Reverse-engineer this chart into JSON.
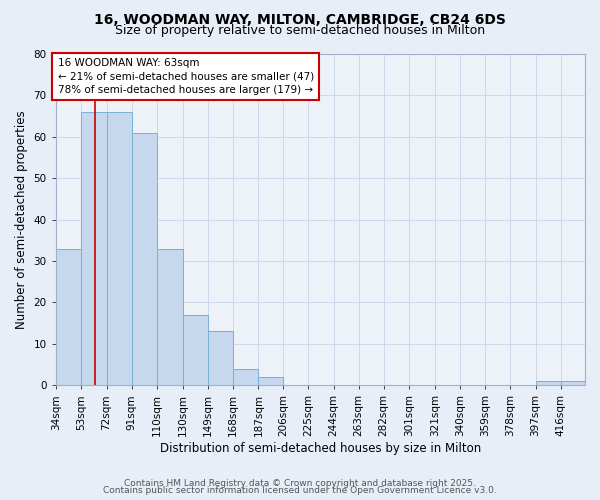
{
  "title1": "16, WOODMAN WAY, MILTON, CAMBRIDGE, CB24 6DS",
  "title2": "Size of property relative to semi-detached houses in Milton",
  "xlabel": "Distribution of semi-detached houses by size in Milton",
  "ylabel": "Number of semi-detached properties",
  "bin_edges": [
    34,
    53,
    72,
    91,
    110,
    130,
    149,
    168,
    187,
    206,
    225,
    244,
    263,
    282,
    301,
    321,
    340,
    359,
    378,
    397,
    416
  ],
  "bar_heights": [
    33,
    66,
    66,
    61,
    33,
    17,
    13,
    4,
    2,
    0,
    0,
    0,
    0,
    0,
    0,
    0,
    0,
    0,
    0,
    1,
    1
  ],
  "bar_color": "#c5d8ee",
  "bar_edge_color": "#7aafd4",
  "property_size": 63,
  "vline_color": "#cc0000",
  "annotation_line1": "16 WOODMAN WAY: 63sqm",
  "annotation_line2": "← 21% of semi-detached houses are smaller (47)",
  "annotation_line3": "78% of semi-detached houses are larger (179) →",
  "annotation_box_color": "#ffffff",
  "annotation_box_edge": "#cc0000",
  "ylim": [
    0,
    80
  ],
  "yticks": [
    0,
    10,
    20,
    30,
    40,
    50,
    60,
    70,
    80
  ],
  "grid_color": "#c8d4e8",
  "background_color": "#e8eef8",
  "plot_bg_color": "#edf2f9",
  "footer1": "Contains HM Land Registry data © Crown copyright and database right 2025.",
  "footer2": "Contains public sector information licensed under the Open Government Licence v3.0.",
  "title1_fontsize": 10,
  "title2_fontsize": 9,
  "xlabel_fontsize": 8.5,
  "ylabel_fontsize": 8.5,
  "tick_fontsize": 7.5,
  "annotation_fontsize": 7.5,
  "footer_fontsize": 6.5
}
